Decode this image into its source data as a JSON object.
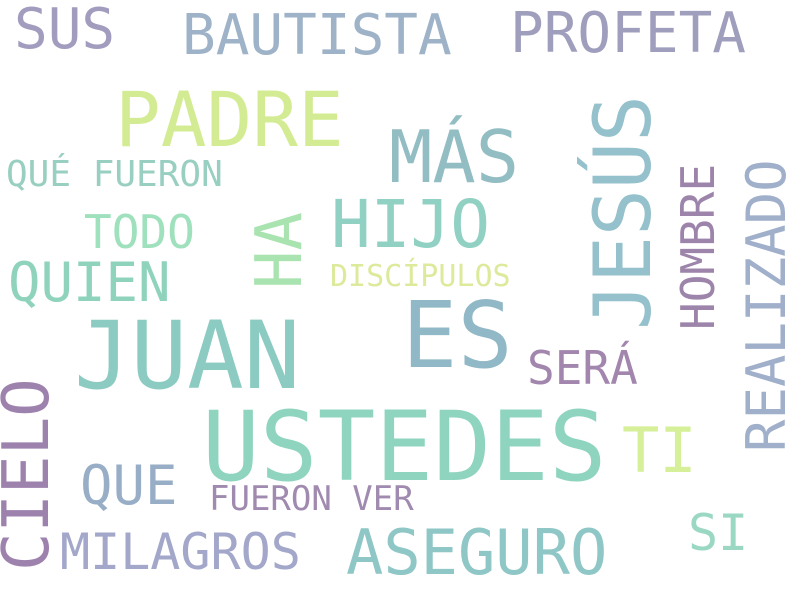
{
  "words": [
    {
      "id": "juan",
      "text": "JUAN",
      "color": "#8ccbc2"
    },
    {
      "id": "ustedes",
      "text": "USTEDES",
      "color": "#8ed4bf"
    },
    {
      "id": "es",
      "text": "ES",
      "color": "#91b8c6"
    },
    {
      "id": "jesus",
      "text": "JESÚS",
      "color": "#94c1cb"
    },
    {
      "id": "ha",
      "text": "HA",
      "color": "#a9e3b0"
    },
    {
      "id": "cielo",
      "text": "CIELO",
      "color": "#9d82ad"
    },
    {
      "id": "padre",
      "text": "PADRE",
      "color": "#d3ec94"
    },
    {
      "id": "mas",
      "text": "MÁS",
      "color": "#92bdc3"
    },
    {
      "id": "hijo",
      "text": "HIJO",
      "color": "#90d1c3"
    },
    {
      "id": "aseguro",
      "text": "ASEGURO",
      "color": "#8fc6c6"
    },
    {
      "id": "realizado",
      "text": "REALIZADO",
      "color": "#a0afca"
    },
    {
      "id": "bautista",
      "text": "BAUTISTA",
      "color": "#9eb2c8"
    },
    {
      "id": "profeta",
      "text": "PROFETA",
      "color": "#9f9fbd"
    },
    {
      "id": "quien",
      "text": "QUIEN",
      "color": "#8fd3bd"
    },
    {
      "id": "hombre",
      "text": "HOMBRE",
      "color": "#9c84aa"
    },
    {
      "id": "milagros",
      "text": "MILAGROS",
      "color": "#a3a7c9"
    },
    {
      "id": "que",
      "text": "QUE",
      "color": "#98aec7"
    },
    {
      "id": "sus",
      "text": "SUS",
      "color": "#a29dbe"
    },
    {
      "id": "todo",
      "text": "TODO",
      "color": "#9fe0bd"
    },
    {
      "id": "sera",
      "text": "SERÁ",
      "color": "#a286ae"
    },
    {
      "id": "ti",
      "text": "TI",
      "color": "#d6ef99"
    },
    {
      "id": "si",
      "text": "SI",
      "color": "#9ad8c4"
    },
    {
      "id": "que-fueron",
      "text": "QUÉ FUERON",
      "color": "#99cfc0"
    },
    {
      "id": "fueron-ver",
      "text": "FUERON VER",
      "color": "#a18aaf"
    },
    {
      "id": "discipulos",
      "text": "DISCÍPULOS",
      "color": "#dcea9c"
    }
  ]
}
